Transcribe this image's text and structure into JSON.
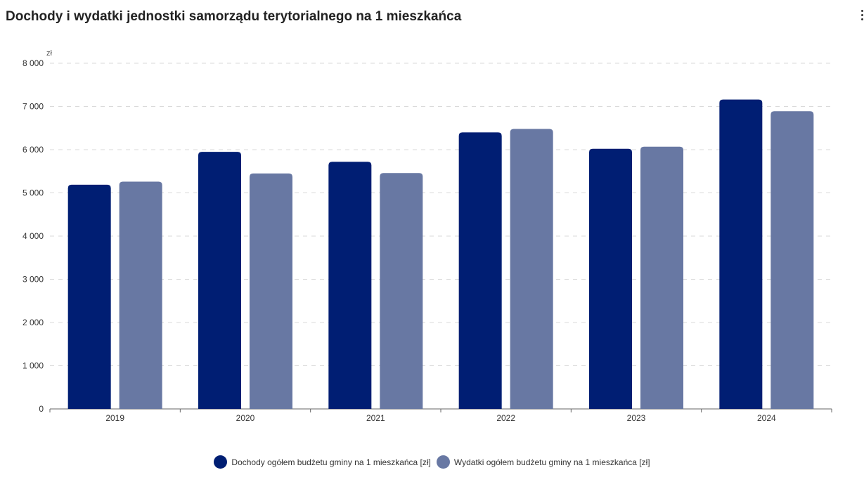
{
  "title": "Dochody i wydatki jednostki samorządu terytorialnego na 1 mieszkańca",
  "menu_icon": "more-vertical-icon",
  "chart_data": {
    "type": "bar",
    "title": "Dochody i wydatki jednostki samorządu terytorialnego na 1 mieszkańca",
    "ylabel": "zł",
    "xlabel": "",
    "categories": [
      "2019",
      "2020",
      "2021",
      "2022",
      "2023",
      "2024"
    ],
    "ylim": [
      0,
      8000
    ],
    "yticks": [
      0,
      1000,
      2000,
      3000,
      4000,
      5000,
      6000,
      7000,
      8000
    ],
    "ytick_labels": [
      "0",
      "1 000",
      "2 000",
      "3 000",
      "4 000",
      "5 000",
      "6 000",
      "7 000",
      "8 000"
    ],
    "grid": true,
    "legend_position": "bottom-center",
    "series": [
      {
        "name": "Dochody ogółem budżetu gminy na 1 mieszkańca [zł]",
        "color": "#001e73",
        "values": [
          5190,
          5950,
          5720,
          6400,
          6020,
          7160
        ]
      },
      {
        "name": "Wydatki ogółem budżetu gminy na 1 mieszkańca [zł]",
        "color": "#6878a3",
        "values": [
          5260,
          5450,
          5460,
          6480,
          6070,
          6890
        ]
      }
    ]
  }
}
